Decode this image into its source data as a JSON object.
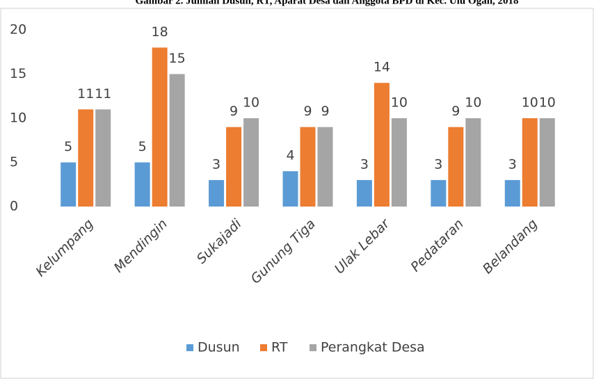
{
  "chart_data": {
    "type": "bar",
    "title": "Gambar 2. Jumlah Dusun, RT, Aparat Desa dan Anggota BPD di Kec. Ulu Ogan, 2018",
    "categories": [
      "Kelumpang",
      "Mendingin",
      "Sukajadi",
      "Gunung Tiga",
      "Ulak Lebar",
      "Pedataran",
      "Belandang"
    ],
    "series": [
      {
        "name": "Dusun",
        "color": "#5b9bd5",
        "values": [
          5,
          5,
          3,
          4,
          3,
          3,
          3
        ]
      },
      {
        "name": "RT",
        "color": "#ed7d31",
        "values": [
          11,
          18,
          9,
          9,
          14,
          9,
          10
        ]
      },
      {
        "name": "Perangkat Desa",
        "color": "#a5a5a5",
        "values": [
          11,
          15,
          10,
          9,
          10,
          10,
          10
        ]
      }
    ],
    "ylim": [
      0,
      20
    ],
    "yticks": [
      0,
      5,
      10,
      15,
      20
    ],
    "grid": false,
    "legend": "bottom"
  }
}
